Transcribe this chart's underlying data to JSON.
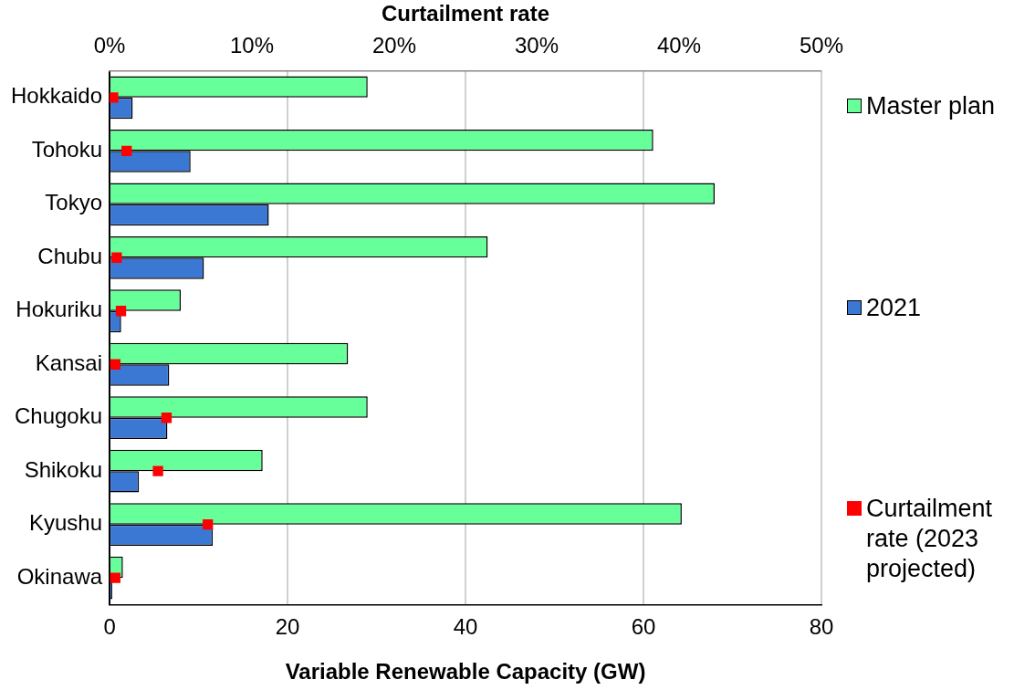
{
  "chart_data": {
    "type": "bar",
    "orientation": "horizontal",
    "xlabel": "Variable Renewable Capacity (GW)",
    "x2label": "Curtailment rate",
    "categories": [
      "Hokkaido",
      "Tohoku",
      "Tokyo",
      "Chubu",
      "Hokuriku",
      "Kansai",
      "Chugoku",
      "Shikoku",
      "Kyushu",
      "Okinawa"
    ],
    "series": [
      {
        "name": "Master plan",
        "color": "#66ff99",
        "values": [
          29.0,
          61.1,
          68.0,
          42.5,
          8.0,
          26.8,
          29.0,
          17.2,
          64.3,
          1.5
        ]
      },
      {
        "name": "2021",
        "color": "#3a78d4",
        "values": [
          2.6,
          9.1,
          17.9,
          10.6,
          1.3,
          6.7,
          6.5,
          3.3,
          11.6,
          0.3
        ]
      },
      {
        "name": "Curtailment rate (2023 projected)",
        "type": "scatter",
        "axis": "x2",
        "marker": "square",
        "color": "#ff0000",
        "values": [
          0.25,
          1.2,
          null,
          0.5,
          0.8,
          0.4,
          4.0,
          3.4,
          6.9,
          0.4
        ]
      }
    ],
    "xlim": [
      0,
      80
    ],
    "xticks": [
      0,
      20,
      40,
      60,
      80
    ],
    "x2lim": [
      0,
      50
    ],
    "x2ticks": [
      {
        "value": 0,
        "label": "0%"
      },
      {
        "value": 10,
        "label": "10%"
      },
      {
        "value": 20,
        "label": "20%"
      },
      {
        "value": 30,
        "label": "30%"
      },
      {
        "value": 40,
        "label": "40%"
      },
      {
        "value": 50,
        "label": "50%"
      }
    ],
    "grid": "x",
    "legend": "right"
  }
}
